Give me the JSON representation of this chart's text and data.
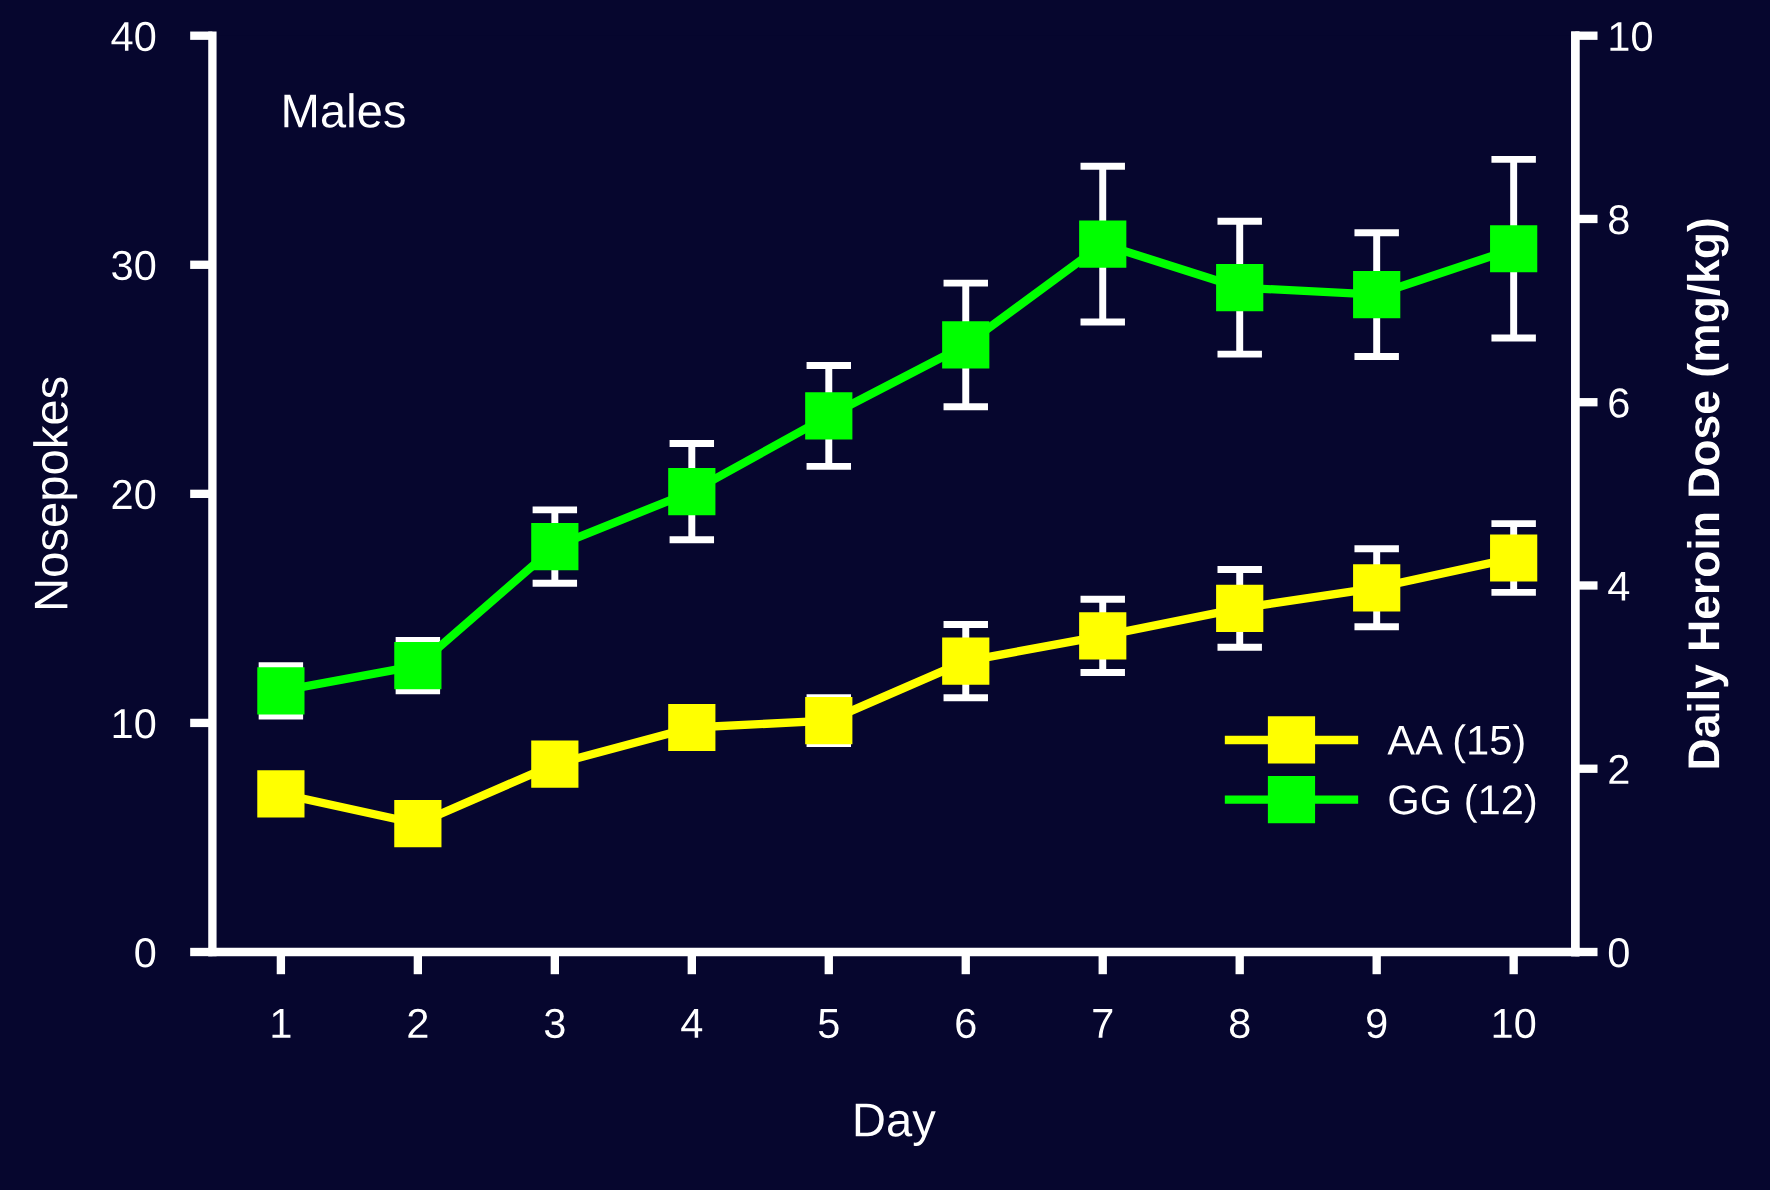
{
  "chart_data": {
    "type": "line",
    "xlabel": "Day",
    "ylabel": "Nosepokes",
    "y2label": "Daily Heroin Dose (mg/kg)",
    "annotations": [
      "Males"
    ],
    "x": [
      1,
      2,
      3,
      4,
      5,
      6,
      7,
      8,
      9,
      10
    ],
    "series": [
      {
        "name": "AA (15)",
        "color": "#ffff00",
        "values": [
          6.9,
          5.6,
          8.2,
          9.8,
          10.1,
          12.7,
          13.8,
          15.0,
          15.9,
          17.2
        ],
        "errors": [
          null,
          null,
          null,
          null,
          1.0,
          1.6,
          1.6,
          1.7,
          1.7,
          1.5
        ]
      },
      {
        "name": "GG (12)",
        "color": "#00ff00",
        "values": [
          11.4,
          12.5,
          17.7,
          20.1,
          23.4,
          26.5,
          30.9,
          29.0,
          28.7,
          30.7
        ],
        "errors": [
          1.1,
          1.1,
          1.6,
          2.1,
          2.2,
          2.7,
          3.4,
          2.9,
          2.7,
          3.9
        ]
      }
    ],
    "xlim": [
      0.5,
      10.45
    ],
    "xticks": [
      1,
      2,
      3,
      4,
      5,
      6,
      7,
      8,
      9,
      10
    ],
    "ylim": [
      0,
      40
    ],
    "yticks": [
      0,
      10,
      20,
      30,
      40
    ],
    "y2lim": [
      0,
      10
    ],
    "y2ticks": [
      0,
      2,
      4,
      6,
      8,
      10
    ],
    "marker": "square",
    "line_style": "solid",
    "grid": false,
    "legend": "bottom right"
  }
}
